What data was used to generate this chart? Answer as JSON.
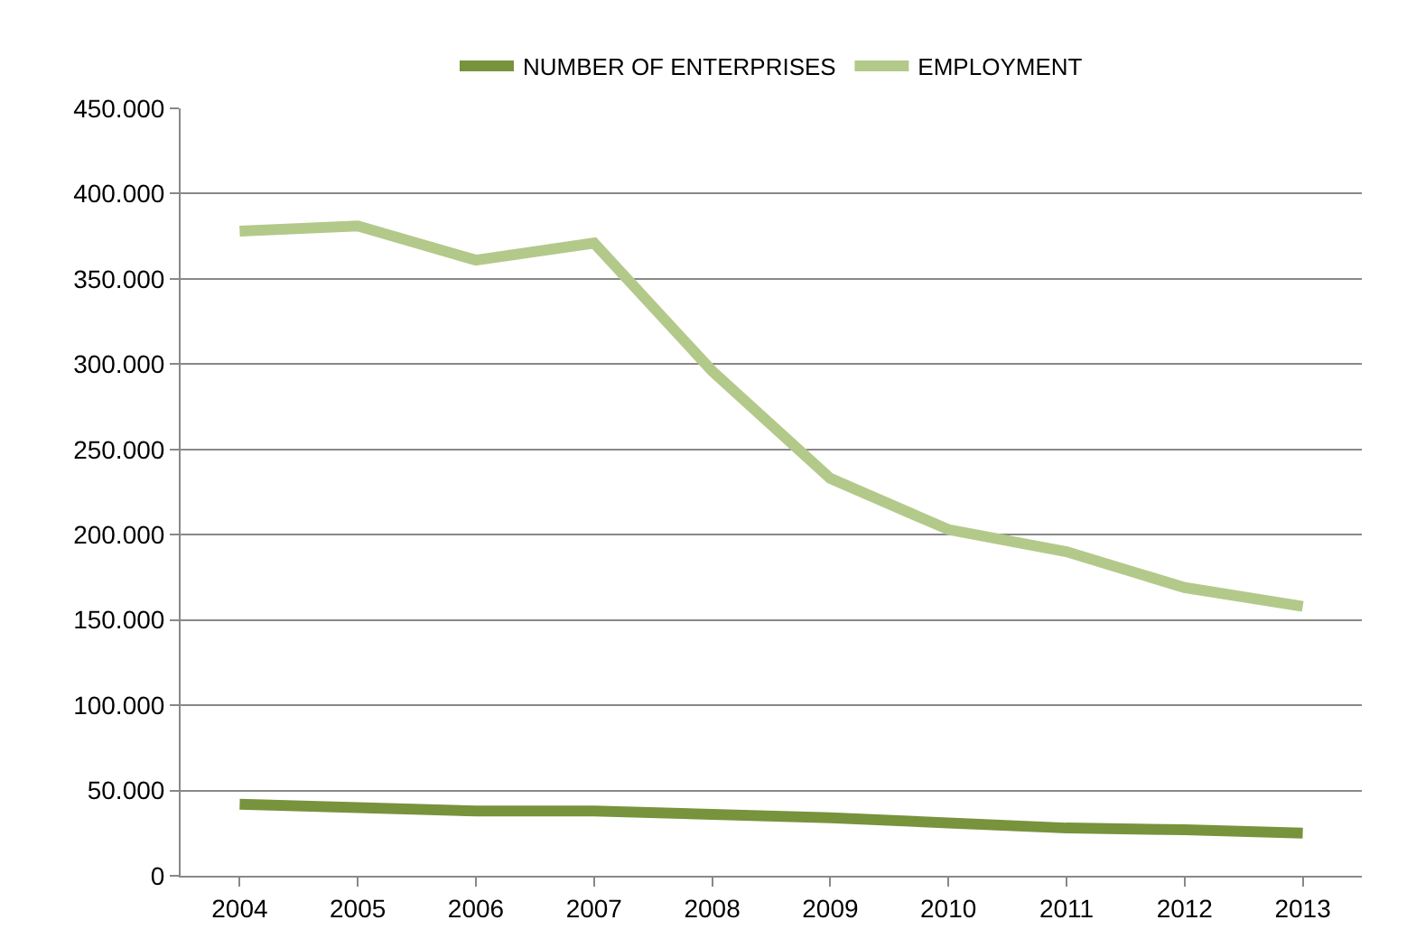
{
  "chart_data": {
    "type": "line",
    "categories": [
      "2004",
      "2005",
      "2006",
      "2007",
      "2008",
      "2009",
      "2010",
      "2011",
      "2012",
      "2013"
    ],
    "series": [
      {
        "name": "NUMBER OF ENTERPRISES",
        "color": "#77933c",
        "values": [
          42000,
          40000,
          38000,
          38000,
          36000,
          34000,
          31000,
          28000,
          27000,
          25000
        ]
      },
      {
        "name": "EMPLOYMENT",
        "color": "#b3c98a",
        "values": [
          378000,
          381000,
          361000,
          371000,
          296000,
          233000,
          203000,
          190000,
          169000,
          158000
        ]
      }
    ],
    "ylim": [
      0,
      450000
    ],
    "yticks": [
      0,
      {
        "value": 50000,
        "label": "50.000"
      },
      {
        "value": 100000,
        "label": "100.000"
      },
      {
        "value": 150000,
        "label": "150.000"
      },
      {
        "value": 200000,
        "label": "200.000"
      },
      {
        "value": 250000,
        "label": "250.000"
      },
      {
        "value": 300000,
        "label": "300.000"
      },
      {
        "value": 350000,
        "label": "350.000"
      },
      {
        "value": 400000,
        "label": "400.000"
      },
      {
        "value": 450000,
        "label": "450.000"
      }
    ],
    "grid": "y",
    "legend": "top",
    "marker": "none",
    "line_style": "solid"
  }
}
